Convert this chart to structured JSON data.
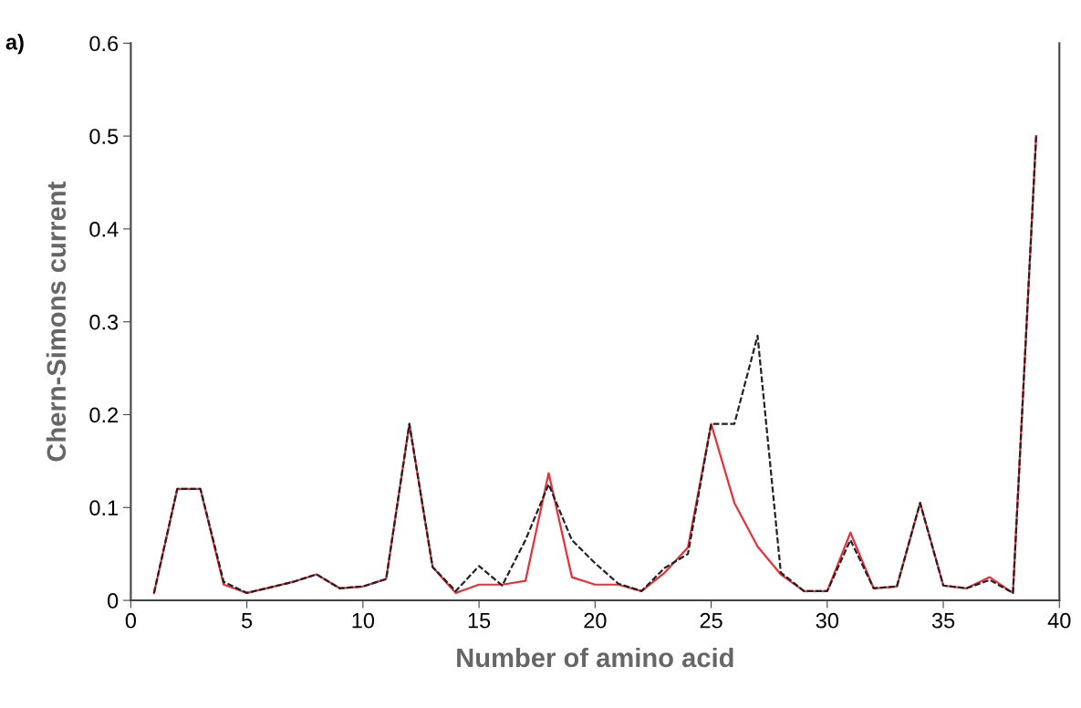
{
  "chart_data": {
    "type": "line",
    "xlabel": "Number of amino acid",
    "ylabel": "Chern-Simons current",
    "annotations": [
      "a)"
    ],
    "x": [
      1,
      2,
      3,
      4,
      5,
      6,
      7,
      8,
      9,
      10,
      11,
      12,
      13,
      14,
      15,
      16,
      17,
      18,
      19,
      20,
      21,
      22,
      23,
      24,
      25,
      26,
      27,
      28,
      29,
      30,
      31,
      32,
      33,
      34,
      35,
      36,
      37,
      38,
      39
    ],
    "series": [
      {
        "color": "#222222",
        "line_style": "dashed",
        "values": [
          0.008,
          0.12,
          0.12,
          0.02,
          0.008,
          0.014,
          0.02,
          0.028,
          0.013,
          0.015,
          0.023,
          0.19,
          0.036,
          0.01,
          0.037,
          0.016,
          0.065,
          0.125,
          0.065,
          0.04,
          0.018,
          0.01,
          0.035,
          0.05,
          0.19,
          0.19,
          0.285,
          0.03,
          0.01,
          0.01,
          0.065,
          0.013,
          0.015,
          0.105,
          0.016,
          0.013,
          0.022,
          0.008,
          0.5
        ]
      },
      {
        "color": "#e8303a",
        "line_style": "solid",
        "values": [
          0.008,
          0.12,
          0.12,
          0.017,
          0.008,
          0.014,
          0.02,
          0.028,
          0.013,
          0.015,
          0.023,
          0.19,
          0.036,
          0.008,
          0.017,
          0.017,
          0.021,
          0.137,
          0.025,
          0.017,
          0.017,
          0.01,
          0.03,
          0.057,
          0.19,
          0.105,
          0.058,
          0.028,
          0.01,
          0.01,
          0.073,
          0.013,
          0.015,
          0.105,
          0.016,
          0.013,
          0.025,
          0.008,
          0.5
        ]
      }
    ],
    "xlim": [
      0,
      40
    ],
    "xticks": [
      0,
      5,
      10,
      15,
      20,
      25,
      30,
      35,
      40
    ],
    "ylim": [
      0,
      0.6
    ],
    "yticks": [
      0,
      0.1,
      0.2,
      0.3,
      0.4,
      0.5,
      0.6
    ],
    "grid": false,
    "legend": false
  }
}
